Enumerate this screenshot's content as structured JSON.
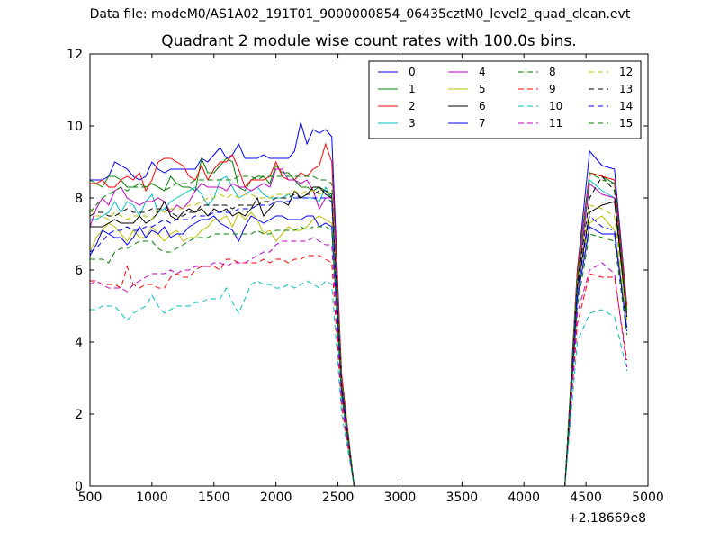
{
  "figure": {
    "suptitle": "Data file: modeM0/AS1A02_191T01_9000000854_06435cztM0_level2_quad_clean.evt",
    "title": "Quadrant 2 module wise count rates with 100.0s bins.",
    "x_offset_label": "+2.18669e8"
  },
  "chart_data": {
    "type": "line",
    "title": "Quadrant 2 module wise count rates with 100.0s bins.",
    "xlabel": "",
    "ylabel": "",
    "x_offset": "+2.18669e8",
    "xlim": [
      500,
      5000
    ],
    "ylim": [
      0,
      12
    ],
    "xticks": [
      500,
      1000,
      1500,
      2000,
      2500,
      3000,
      3500,
      4000,
      4500,
      5000
    ],
    "yticks": [
      0,
      2,
      4,
      6,
      8,
      10,
      12
    ],
    "grid": false,
    "legend": "top-right",
    "x": [
      500,
      550,
      600,
      650,
      700,
      750,
      800,
      850,
      900,
      950,
      1000,
      1050,
      1100,
      1150,
      1200,
      1250,
      1300,
      1350,
      1400,
      1450,
      1500,
      1550,
      1600,
      1650,
      1700,
      1750,
      1800,
      1850,
      1900,
      1950,
      2000,
      2050,
      2100,
      2150,
      2200,
      2250,
      2300,
      2350,
      2400,
      2450,
      2530,
      2630,
      4330,
      4430,
      4530,
      4630,
      4730,
      4830
    ],
    "series": [
      {
        "name": "0",
        "color": "#0000ff",
        "dash": "solid",
        "values": [
          8.5,
          8.5,
          8.5,
          8.6,
          9.0,
          8.9,
          8.8,
          8.6,
          8.5,
          8.6,
          9.0,
          8.8,
          8.7,
          8.8,
          8.8,
          8.8,
          8.8,
          8.8,
          9.1,
          9.0,
          9.2,
          9.4,
          9.1,
          9.2,
          9.5,
          9.1,
          9.1,
          9.1,
          9.2,
          9.1,
          9.1,
          9.1,
          9.1,
          9.3,
          10.1,
          9.5,
          9.9,
          9.8,
          9.9,
          9.7,
          3.0,
          0.0,
          0.0,
          6.0,
          9.3,
          8.9,
          8.8,
          5.0
        ]
      },
      {
        "name": "1",
        "color": "#008000",
        "dash": "solid",
        "values": [
          8.5,
          8.4,
          8.3,
          8.6,
          8.6,
          8.5,
          8.3,
          8.3,
          8.4,
          8.3,
          8.4,
          8.3,
          8.2,
          8.6,
          8.4,
          8.3,
          8.3,
          8.2,
          9.1,
          8.7,
          8.7,
          8.9,
          9.1,
          9.0,
          8.3,
          8.2,
          8.5,
          8.6,
          8.6,
          8.4,
          8.9,
          8.7,
          8.7,
          8.5,
          8.3,
          8.3,
          8.2,
          8.3,
          8.2,
          8.0,
          2.8,
          0.0,
          0.0,
          5.9,
          8.7,
          8.6,
          8.4,
          4.9
        ]
      },
      {
        "name": "2",
        "color": "#ff0000",
        "dash": "solid",
        "values": [
          8.4,
          8.4,
          8.5,
          8.3,
          8.3,
          8.5,
          8.6,
          8.5,
          8.7,
          8.2,
          8.5,
          9.0,
          9.1,
          9.1,
          9.0,
          8.9,
          8.6,
          8.5,
          8.9,
          8.5,
          8.8,
          9.0,
          9.0,
          9.2,
          8.8,
          8.3,
          8.5,
          8.5,
          8.5,
          8.6,
          9.0,
          8.6,
          8.5,
          8.5,
          8.7,
          8.6,
          8.8,
          8.9,
          9.5,
          9.0,
          3.1,
          0.0,
          0.0,
          6.0,
          8.7,
          8.6,
          8.5,
          5.0
        ]
      },
      {
        "name": "3",
        "color": "#00bfbf",
        "dash": "solid",
        "values": [
          7.4,
          7.4,
          7.5,
          7.6,
          7.9,
          7.6,
          7.9,
          7.8,
          7.5,
          7.9,
          8.1,
          7.6,
          7.7,
          7.9,
          8.0,
          8.1,
          8.2,
          8.3,
          8.1,
          7.8,
          8.0,
          8.5,
          8.6,
          8.3,
          8.0,
          8.1,
          8.2,
          8.3,
          8.1,
          8.0,
          8.0,
          8.0,
          8.1,
          8.0,
          8.0,
          8.0,
          8.0,
          7.9,
          8.3,
          8.0,
          2.9,
          0.0,
          0.0,
          5.7,
          8.5,
          8.2,
          8.0,
          4.8
        ]
      },
      {
        "name": "4",
        "color": "#bf00bf",
        "dash": "solid",
        "values": [
          7.2,
          7.7,
          8.0,
          7.8,
          8.2,
          8.3,
          8.0,
          7.9,
          7.8,
          7.9,
          7.9,
          8.0,
          7.9,
          7.6,
          7.8,
          7.7,
          7.9,
          8.2,
          8.4,
          8.3,
          8.3,
          8.3,
          8.2,
          8.4,
          8.3,
          8.3,
          8.2,
          8.3,
          8.4,
          8.3,
          8.8,
          8.8,
          8.5,
          8.5,
          8.4,
          8.5,
          8.2,
          7.7,
          8.0,
          8.0,
          2.9,
          0.0,
          0.0,
          5.6,
          8.4,
          8.1,
          8.0,
          4.8
        ]
      },
      {
        "name": "5",
        "color": "#bfbf00",
        "dash": "solid",
        "values": [
          6.5,
          6.9,
          7.1,
          7.3,
          7.2,
          7.0,
          6.8,
          7.1,
          6.9,
          6.9,
          7.2,
          7.0,
          6.8,
          7.0,
          7.1,
          6.8,
          6.9,
          6.9,
          7.1,
          7.2,
          7.4,
          7.4,
          7.5,
          7.2,
          7.6,
          7.4,
          7.6,
          7.4,
          7.0,
          7.1,
          6.8,
          7.0,
          7.2,
          7.1,
          7.1,
          7.2,
          7.4,
          7.5,
          7.4,
          7.3,
          2.6,
          0.0,
          0.0,
          5.3,
          7.3,
          7.5,
          7.1,
          4.6
        ]
      },
      {
        "name": "6",
        "color": "#000000",
        "dash": "solid",
        "values": [
          7.2,
          7.2,
          7.2,
          7.3,
          7.4,
          7.3,
          7.3,
          7.3,
          7.5,
          7.3,
          7.4,
          7.6,
          7.9,
          7.5,
          7.4,
          7.6,
          7.7,
          7.6,
          7.7,
          7.5,
          7.7,
          7.6,
          7.7,
          7.5,
          7.6,
          7.5,
          7.7,
          8.0,
          7.5,
          7.7,
          7.9,
          7.9,
          7.8,
          8.2,
          8.0,
          8.1,
          8.3,
          8.3,
          8.1,
          8.0,
          2.8,
          0.0,
          0.0,
          5.5,
          7.6,
          7.8,
          7.9,
          4.7
        ]
      },
      {
        "name": "7",
        "color": "#0000ff",
        "dash": "solid",
        "values": [
          6.4,
          6.7,
          7.1,
          7.0,
          6.9,
          6.9,
          6.7,
          6.9,
          7.2,
          6.9,
          7.1,
          7.0,
          7.2,
          6.9,
          7.0,
          7.0,
          7.2,
          7.3,
          7.4,
          7.4,
          7.5,
          7.3,
          7.2,
          7.1,
          6.8,
          7.2,
          7.5,
          7.4,
          7.3,
          7.4,
          7.5,
          7.5,
          7.4,
          7.4,
          7.4,
          7.5,
          7.5,
          7.2,
          7.3,
          7.2,
          2.6,
          0.0,
          0.0,
          5.2,
          7.2,
          7.0,
          7.0,
          4.4
        ]
      },
      {
        "name": "8",
        "color": "#008000",
        "dash": "dashed",
        "values": [
          6.3,
          6.3,
          6.3,
          6.2,
          6.5,
          6.6,
          6.6,
          6.7,
          6.8,
          6.8,
          6.8,
          6.6,
          6.5,
          6.5,
          6.6,
          6.7,
          6.8,
          6.9,
          6.9,
          6.9,
          7.0,
          7.0,
          7.0,
          7.0,
          7.0,
          7.0,
          7.0,
          7.1,
          7.0,
          7.0,
          7.1,
          7.1,
          7.1,
          7.1,
          7.2,
          7.1,
          7.2,
          7.2,
          7.2,
          7.1,
          2.5,
          0.0,
          0.0,
          5.0,
          7.0,
          6.9,
          6.8,
          4.2
        ]
      },
      {
        "name": "9",
        "color": "#ff0000",
        "dash": "dashed",
        "values": [
          5.7,
          5.7,
          5.6,
          5.6,
          5.6,
          5.5,
          6.1,
          5.6,
          5.5,
          5.6,
          5.6,
          5.5,
          5.5,
          5.8,
          5.9,
          5.8,
          5.8,
          6.0,
          6.1,
          6.1,
          6.1,
          6.0,
          6.3,
          6.3,
          6.2,
          6.2,
          6.2,
          6.2,
          6.3,
          6.2,
          6.3,
          6.3,
          6.2,
          6.3,
          6.3,
          6.4,
          6.4,
          6.4,
          6.3,
          6.2,
          2.2,
          0.0,
          0.0,
          4.5,
          5.9,
          5.8,
          5.8,
          3.5
        ]
      },
      {
        "name": "10",
        "color": "#00bfbf",
        "dash": "dashed",
        "values": [
          4.9,
          4.9,
          5.0,
          5.0,
          5.0,
          4.8,
          4.6,
          4.8,
          4.9,
          5.0,
          5.3,
          5.0,
          4.8,
          4.9,
          5.0,
          5.0,
          5.0,
          5.1,
          5.1,
          5.2,
          5.2,
          5.2,
          5.5,
          5.1,
          4.8,
          5.2,
          5.6,
          5.7,
          5.6,
          5.6,
          5.5,
          5.5,
          5.6,
          5.5,
          5.6,
          5.7,
          5.6,
          5.5,
          5.7,
          5.6,
          2.0,
          0.0,
          0.0,
          4.0,
          4.8,
          4.9,
          4.7,
          3.2
        ]
      },
      {
        "name": "11",
        "color": "#bf00bf",
        "dash": "dashed",
        "values": [
          5.6,
          5.7,
          5.6,
          5.5,
          5.5,
          5.5,
          5.4,
          5.6,
          5.7,
          5.8,
          5.9,
          5.9,
          5.9,
          6.0,
          5.9,
          6.0,
          6.0,
          6.1,
          6.1,
          6.1,
          6.2,
          6.2,
          6.1,
          6.2,
          6.2,
          6.2,
          6.3,
          6.4,
          6.5,
          6.5,
          6.7,
          6.8,
          6.8,
          6.8,
          6.8,
          6.8,
          6.9,
          6.8,
          6.7,
          6.7,
          2.4,
          0.0,
          0.0,
          4.8,
          6.0,
          6.2,
          5.9,
          3.3
        ]
      },
      {
        "name": "12",
        "color": "#bfbf00",
        "dash": "dashed",
        "values": [
          7.7,
          7.5,
          7.5,
          7.4,
          7.6,
          7.5,
          7.4,
          7.5,
          7.5,
          7.5,
          7.4,
          7.7,
          7.6,
          7.7,
          7.7,
          7.7,
          7.8,
          7.8,
          7.9,
          8.0,
          8.0,
          8.1,
          8.0,
          8.1,
          8.0,
          8.1,
          8.1,
          8.0,
          8.0,
          8.0,
          8.1,
          8.1,
          8.1,
          8.2,
          8.1,
          8.2,
          8.2,
          8.1,
          8.2,
          8.1,
          2.8,
          0.0,
          0.0,
          5.6,
          7.8,
          7.7,
          7.5,
          4.6
        ]
      },
      {
        "name": "13",
        "color": "#000000",
        "dash": "dashed",
        "values": [
          7.5,
          7.6,
          7.6,
          7.5,
          7.5,
          7.6,
          7.7,
          7.6,
          7.6,
          7.6,
          7.7,
          7.7,
          7.7,
          7.6,
          7.5,
          7.5,
          7.6,
          7.6,
          7.8,
          7.8,
          7.8,
          7.8,
          7.8,
          7.7,
          7.8,
          7.8,
          7.8,
          7.8,
          7.9,
          7.9,
          8.0,
          8.0,
          8.0,
          8.1,
          8.0,
          8.1,
          8.1,
          8.2,
          8.2,
          8.1,
          2.8,
          0.0,
          0.0,
          5.6,
          8.0,
          8.6,
          8.2,
          4.7
        ]
      },
      {
        "name": "14",
        "color": "#0000ff",
        "dash": "dashed",
        "values": [
          6.5,
          6.6,
          6.8,
          7.0,
          7.1,
          7.1,
          7.2,
          7.1,
          7.1,
          7.2,
          7.2,
          7.3,
          7.4,
          7.3,
          7.4,
          7.4,
          7.4,
          7.5,
          7.5,
          7.5,
          7.6,
          7.6,
          7.6,
          7.6,
          7.7,
          7.7,
          7.7,
          7.8,
          7.8,
          7.8,
          7.9,
          7.9,
          7.9,
          8.0,
          8.0,
          8.0,
          8.0,
          8.0,
          8.0,
          7.9,
          2.7,
          0.0,
          0.0,
          5.4,
          7.5,
          7.2,
          7.1,
          4.3
        ]
      },
      {
        "name": "15",
        "color": "#008000",
        "dash": "dashed",
        "values": [
          7.6,
          7.8,
          8.0,
          8.1,
          8.2,
          8.3,
          8.2,
          8.3,
          8.3,
          8.3,
          8.4,
          8.3,
          8.2,
          8.3,
          8.4,
          8.4,
          8.4,
          8.5,
          8.5,
          8.5,
          8.5,
          8.5,
          8.5,
          8.5,
          8.6,
          8.6,
          8.6,
          8.5,
          8.6,
          8.6,
          8.6,
          8.6,
          8.6,
          8.6,
          8.6,
          8.6,
          8.6,
          8.5,
          8.5,
          8.4,
          2.9,
          0.0,
          0.0,
          5.8,
          8.7,
          8.5,
          8.4,
          4.8
        ]
      }
    ]
  }
}
